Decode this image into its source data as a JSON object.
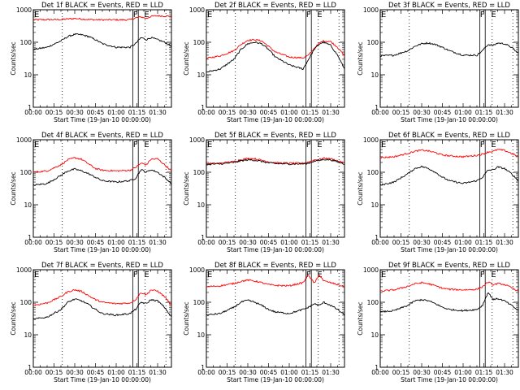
{
  "window": {
    "title": ""
  },
  "figure": {
    "xlabel": "Start Time (19-Jan-10 00:00:00)",
    "ylabel": "Counts/sec",
    "xticks": [
      "00:00",
      "00:15",
      "00:30",
      "00:45",
      "01:00",
      "01:15",
      "01:30"
    ],
    "yticks": [
      "1",
      "10",
      "100",
      "1000"
    ],
    "colors": {
      "events": "#000000",
      "lld": "#ff0000",
      "axes": "#000000",
      "background": "#ffffff"
    }
  },
  "chart_data": [
    {
      "type": "line",
      "panel": 1,
      "title": "Det 1f BLACK = Events, RED = LLD",
      "xlabel": "Start Time (19-Jan-10 00:00:00)",
      "ylabel": "Counts/sec",
      "x_unit": "minutes",
      "xlim": [
        0,
        100
      ],
      "ylim": [
        1,
        1000
      ],
      "yscale": "log",
      "x": [
        0,
        10,
        20,
        25,
        30,
        35,
        40,
        45,
        50,
        60,
        70,
        74,
        78,
        82,
        85,
        90,
        95,
        100
      ],
      "series": [
        {
          "name": "Events",
          "color": "#000000",
          "values": [
            60,
            70,
            110,
            150,
            175,
            170,
            150,
            120,
            90,
            70,
            70,
            90,
            140,
            120,
            140,
            120,
            100,
            75
          ]
        },
        {
          "name": "LLD",
          "color": "#ff0000",
          "values": [
            490,
            495,
            500,
            520,
            540,
            520,
            500,
            495,
            490,
            490,
            490,
            560,
            600,
            540,
            620,
            650,
            640,
            620
          ]
        }
      ],
      "vlines_solid": [
        72,
        76
      ],
      "vlines_dotted": [
        21,
        81,
        96
      ],
      "annotations": [
        {
          "text": "E",
          "x": 0
        },
        {
          "text": "F",
          "x": 74
        },
        {
          "text": "E",
          "x": 82
        }
      ]
    },
    {
      "type": "line",
      "panel": 2,
      "title": "Det 2f BLACK = Events, RED = LLD",
      "xlabel": "Start Time (19-Jan-10 00:00:00)",
      "ylabel": "Counts/sec",
      "x_unit": "minutes",
      "xlim": [
        0,
        100
      ],
      "ylim": [
        1,
        1000
      ],
      "yscale": "log",
      "x": [
        0,
        10,
        20,
        25,
        30,
        35,
        40,
        45,
        50,
        60,
        70,
        74,
        78,
        82,
        85,
        90,
        95,
        100
      ],
      "series": [
        {
          "name": "Events",
          "color": "#000000",
          "values": [
            12,
            15,
            30,
            60,
            90,
            100,
            90,
            60,
            35,
            20,
            15,
            30,
            60,
            90,
            100,
            80,
            40,
            15
          ]
        },
        {
          "name": "LLD",
          "color": "#ff0000",
          "values": [
            32,
            38,
            55,
            85,
            115,
            120,
            110,
            75,
            50,
            35,
            33,
            40,
            65,
            95,
            110,
            105,
            70,
            38
          ]
        }
      ],
      "vlines_solid": [
        72,
        76
      ],
      "vlines_dotted": [
        21,
        81,
        96
      ],
      "annotations": [
        {
          "text": "E",
          "x": 0
        },
        {
          "text": "F",
          "x": 74
        },
        {
          "text": "E",
          "x": 82
        }
      ]
    },
    {
      "type": "line",
      "panel": 3,
      "title": "Det 3f BLACK = Events, RED = LLD",
      "xlabel": "Start Time (19-Jan-10 00:00:00)",
      "ylabel": "Counts/sec",
      "x_unit": "minutes",
      "xlim": [
        0,
        100
      ],
      "ylim": [
        1,
        1000
      ],
      "yscale": "log",
      "x": [
        0,
        10,
        20,
        25,
        30,
        35,
        40,
        45,
        50,
        60,
        70,
        74,
        78,
        82,
        85,
        90,
        95,
        100
      ],
      "series": [
        {
          "name": "Events",
          "color": "#000000",
          "values": [
            38,
            40,
            55,
            75,
            90,
            95,
            85,
            70,
            55,
            40,
            40,
            55,
            85,
            80,
            95,
            90,
            70,
            45
          ]
        }
      ],
      "vlines_solid": [
        72,
        76
      ],
      "vlines_dotted": [
        21,
        81,
        96
      ],
      "annotations": [
        {
          "text": "E",
          "x": 0
        },
        {
          "text": "F",
          "x": 74
        },
        {
          "text": "E",
          "x": 82
        }
      ]
    },
    {
      "type": "line",
      "panel": 4,
      "title": "Det 4f BLACK = Events, RED = LLD",
      "xlabel": "Start Time (19-Jan-10 00:00:00)",
      "ylabel": "Counts/sec",
      "x_unit": "minutes",
      "xlim": [
        0,
        100
      ],
      "ylim": [
        1,
        1000
      ],
      "yscale": "log",
      "x": [
        0,
        10,
        20,
        25,
        30,
        35,
        40,
        45,
        50,
        60,
        70,
        74,
        78,
        82,
        85,
        90,
        95,
        100
      ],
      "series": [
        {
          "name": "Events",
          "color": "#000000",
          "values": [
            40,
            45,
            80,
            110,
            125,
            110,
            90,
            70,
            55,
            50,
            55,
            65,
            120,
            100,
            120,
            100,
            70,
            45
          ]
        },
        {
          "name": "LLD",
          "color": "#ff0000",
          "values": [
            100,
            110,
            170,
            240,
            280,
            250,
            180,
            130,
            115,
            110,
            115,
            140,
            190,
            170,
            250,
            260,
            170,
            110
          ]
        }
      ],
      "vlines_solid": [
        72,
        76
      ],
      "vlines_dotted": [
        21,
        81,
        96
      ],
      "annotations": [
        {
          "text": "E",
          "x": 0
        },
        {
          "text": "F",
          "x": 74
        },
        {
          "text": "E",
          "x": 82
        }
      ]
    },
    {
      "type": "line",
      "panel": 5,
      "title": "Det 5f BLACK = Events, RED = LLD",
      "xlabel": "Start Time (19-Jan-10 00:00:00)",
      "ylabel": "Counts/sec",
      "x_unit": "minutes",
      "xlim": [
        0,
        100
      ],
      "ylim": [
        1,
        1000
      ],
      "yscale": "log",
      "x": [
        0,
        10,
        20,
        25,
        30,
        35,
        40,
        45,
        50,
        60,
        70,
        74,
        78,
        82,
        85,
        90,
        95,
        100
      ],
      "series": [
        {
          "name": "Events",
          "color": "#000000",
          "values": [
            175,
            180,
            200,
            225,
            240,
            235,
            215,
            195,
            185,
            180,
            180,
            190,
            220,
            230,
            250,
            240,
            210,
            180
          ]
        },
        {
          "name": "LLD",
          "color": "#ff0000",
          "values": [
            185,
            190,
            215,
            245,
            265,
            260,
            235,
            210,
            195,
            190,
            190,
            205,
            240,
            250,
            270,
            260,
            225,
            190
          ]
        }
      ],
      "vlines_solid": [
        72,
        76
      ],
      "vlines_dotted": [
        21,
        81,
        96
      ],
      "annotations": [
        {
          "text": "E",
          "x": 0
        },
        {
          "text": "F",
          "x": 74
        },
        {
          "text": "E",
          "x": 82
        }
      ]
    },
    {
      "type": "line",
      "panel": 6,
      "title": "Det 6f BLACK = Events, RED = LLD",
      "xlabel": "Start Time (19-Jan-10 00:00:00)",
      "ylabel": "Counts/sec",
      "x_unit": "minutes",
      "xlim": [
        0,
        100
      ],
      "ylim": [
        1,
        1000
      ],
      "yscale": "log",
      "x": [
        0,
        10,
        20,
        25,
        30,
        35,
        40,
        45,
        50,
        60,
        70,
        74,
        78,
        82,
        85,
        90,
        95,
        100
      ],
      "series": [
        {
          "name": "Events",
          "color": "#000000",
          "values": [
            40,
            50,
            90,
            130,
            150,
            130,
            100,
            70,
            55,
            45,
            55,
            70,
            115,
            120,
            145,
            130,
            90,
            55
          ]
        },
        {
          "name": "LLD",
          "color": "#ff0000",
          "values": [
            280,
            300,
            380,
            440,
            480,
            450,
            400,
            340,
            320,
            300,
            330,
            360,
            420,
            440,
            500,
            470,
            380,
            300
          ]
        }
      ],
      "vlines_solid": [
        72,
        76
      ],
      "vlines_dotted": [
        21,
        81,
        96
      ],
      "annotations": [
        {
          "text": "E",
          "x": 0
        },
        {
          "text": "F",
          "x": 74
        },
        {
          "text": "E",
          "x": 82
        }
      ]
    },
    {
      "type": "line",
      "panel": 7,
      "title": "Det 7f BLACK = Events, RED = LLD",
      "xlabel": "Start Time (19-Jan-10 00:00:00)",
      "ylabel": "Counts/sec",
      "x_unit": "minutes",
      "xlim": [
        0,
        100
      ],
      "ylim": [
        1,
        1000
      ],
      "yscale": "log",
      "x": [
        0,
        10,
        20,
        25,
        30,
        35,
        40,
        45,
        50,
        60,
        70,
        74,
        78,
        82,
        85,
        90,
        95,
        100
      ],
      "series": [
        {
          "name": "Events",
          "color": "#000000",
          "values": [
            30,
            35,
            60,
            100,
            125,
            110,
            85,
            60,
            45,
            40,
            45,
            60,
            100,
            90,
            120,
            110,
            70,
            35
          ]
        },
        {
          "name": "LLD",
          "color": "#ff0000",
          "values": [
            80,
            95,
            150,
            210,
            240,
            215,
            160,
            120,
            100,
            90,
            95,
            120,
            200,
            170,
            240,
            220,
            150,
            80
          ]
        }
      ],
      "vlines_solid": [
        72,
        76
      ],
      "vlines_dotted": [
        21,
        81,
        96
      ],
      "annotations": [
        {
          "text": "E",
          "x": 0
        },
        {
          "text": "F",
          "x": 74
        },
        {
          "text": "E",
          "x": 82
        }
      ]
    },
    {
      "type": "line",
      "panel": 8,
      "title": "Det 8f BLACK = Events, RED = LLD",
      "xlabel": "Start Time (19-Jan-10 00:00:00)",
      "ylabel": "Counts/sec",
      "x_unit": "minutes",
      "xlim": [
        0,
        100
      ],
      "ylim": [
        1,
        1000
      ],
      "yscale": "log",
      "x": [
        0,
        10,
        20,
        25,
        30,
        35,
        40,
        45,
        50,
        60,
        70,
        74,
        78,
        82,
        85,
        90,
        95,
        100
      ],
      "series": [
        {
          "name": "Events",
          "color": "#000000",
          "values": [
            40,
            45,
            70,
            100,
            115,
            100,
            80,
            60,
            50,
            45,
            60,
            70,
            90,
            80,
            100,
            80,
            60,
            40
          ]
        },
        {
          "name": "LLD",
          "color": "#ff0000",
          "values": [
            300,
            320,
            380,
            440,
            480,
            450,
            400,
            350,
            330,
            320,
            400,
            700,
            380,
            700,
            450,
            400,
            350,
            300
          ]
        }
      ],
      "vlines_solid": [
        72,
        76
      ],
      "vlines_dotted": [
        21,
        81,
        96
      ],
      "annotations": [
        {
          "text": "E",
          "x": 0
        },
        {
          "text": "F",
          "x": 74
        },
        {
          "text": "E",
          "x": 82
        }
      ]
    },
    {
      "type": "line",
      "panel": 9,
      "title": "Det 9f BLACK = Events, RED = LLD",
      "xlabel": "Start Time (19-Jan-10 00:00:00)",
      "ylabel": "Counts/sec",
      "x_unit": "minutes",
      "xlim": [
        0,
        100
      ],
      "ylim": [
        1,
        1000
      ],
      "yscale": "log",
      "x": [
        0,
        10,
        20,
        25,
        30,
        35,
        40,
        45,
        50,
        60,
        70,
        74,
        78,
        82,
        85,
        90,
        95,
        100
      ],
      "series": [
        {
          "name": "Events",
          "color": "#000000",
          "values": [
            50,
            55,
            80,
            110,
            120,
            110,
            90,
            70,
            60,
            55,
            60,
            80,
            200,
            120,
            130,
            110,
            80,
            55
          ]
        },
        {
          "name": "LLD",
          "color": "#ff0000",
          "values": [
            220,
            240,
            310,
            370,
            400,
            370,
            320,
            270,
            250,
            240,
            250,
            300,
            420,
            340,
            380,
            350,
            280,
            220
          ]
        }
      ],
      "vlines_solid": [
        72,
        76
      ],
      "vlines_dotted": [
        21,
        81,
        96
      ],
      "annotations": [
        {
          "text": "E",
          "x": 0
        },
        {
          "text": "F",
          "x": 74
        },
        {
          "text": "E",
          "x": 82
        }
      ]
    }
  ]
}
